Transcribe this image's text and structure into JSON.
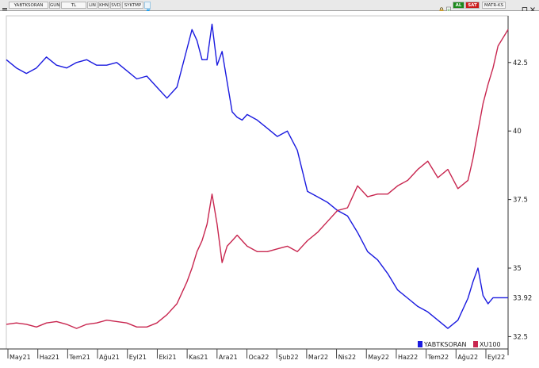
{
  "toolbar": {
    "buttons": [
      "YABTKSORAN",
      "GUN",
      "TL",
      "LIN",
      "KHN",
      "SVD",
      "SYKTMP"
    ],
    "right_buttons": [
      "AL",
      "SAT",
      "MATR-KS"
    ],
    "colors": {
      "al": "#1c8a1c",
      "sat": "#cc1a1a"
    },
    "icons": [
      "menu-icon",
      "twitter-icon",
      "lock-icon",
      "doc-icon",
      "minimize-icon",
      "maximize-icon",
      "close-icon"
    ]
  },
  "chart_data": {
    "type": "line",
    "x_ticks": [
      "May21",
      "Haz21",
      "Tem21",
      "Ağu21",
      "Eyl21",
      "Eki21",
      "Kas21",
      "Ara21",
      "Oca22",
      "Şub22",
      "Mar22",
      "Nis22",
      "May22",
      "Haz22",
      "Tem22",
      "Ağu22",
      "Eyl22"
    ],
    "y_ticks": [
      42.5,
      40,
      37.5,
      35,
      32.5
    ],
    "ylim": [
      32.05,
      44.2
    ],
    "last_value_label": "33.92",
    "legend": {
      "position": "bottom-right",
      "items": [
        {
          "label": "YABTKSORAN",
          "color": "#1a1adf"
        },
        {
          "label": "XU100",
          "color": "#c8264f"
        }
      ]
    },
    "series": [
      {
        "name": "YABTKSORAN",
        "color": "#1a1adf",
        "x": [
          0,
          0.02,
          0.04,
          0.06,
          0.08,
          0.1,
          0.12,
          0.14,
          0.16,
          0.18,
          0.2,
          0.22,
          0.24,
          0.26,
          0.28,
          0.3,
          0.32,
          0.34,
          0.36,
          0.37,
          0.38,
          0.39,
          0.4,
          0.41,
          0.42,
          0.43,
          0.44,
          0.45,
          0.46,
          0.47,
          0.48,
          0.5,
          0.52,
          0.54,
          0.56,
          0.58,
          0.6,
          0.62,
          0.64,
          0.66,
          0.68,
          0.7,
          0.72,
          0.74,
          0.76,
          0.78,
          0.8,
          0.82,
          0.84,
          0.86,
          0.88,
          0.9,
          0.92,
          0.93,
          0.94,
          0.95,
          0.96,
          0.97,
          0.98,
          1.0
        ],
        "y": [
          42.6,
          42.3,
          42.1,
          42.3,
          42.7,
          42.4,
          42.3,
          42.5,
          42.6,
          42.4,
          42.4,
          42.5,
          42.2,
          41.9,
          42.0,
          41.6,
          41.2,
          41.6,
          43.0,
          43.7,
          43.3,
          42.6,
          42.6,
          43.9,
          42.4,
          42.9,
          41.8,
          40.7,
          40.5,
          40.4,
          40.6,
          40.4,
          40.1,
          39.8,
          40.0,
          39.3,
          37.8,
          37.6,
          37.4,
          37.1,
          36.9,
          36.3,
          35.6,
          35.3,
          34.8,
          34.2,
          33.9,
          33.6,
          33.4,
          33.1,
          32.8,
          33.1,
          33.9,
          34.5,
          35.0,
          34.0,
          33.7,
          33.92,
          33.92,
          33.92
        ]
      },
      {
        "name": "XU100",
        "color": "#c8264f",
        "x": [
          0,
          0.02,
          0.04,
          0.06,
          0.08,
          0.1,
          0.12,
          0.14,
          0.16,
          0.18,
          0.2,
          0.22,
          0.24,
          0.26,
          0.28,
          0.3,
          0.32,
          0.34,
          0.36,
          0.37,
          0.38,
          0.39,
          0.4,
          0.41,
          0.42,
          0.43,
          0.44,
          0.45,
          0.46,
          0.47,
          0.48,
          0.5,
          0.52,
          0.54,
          0.56,
          0.58,
          0.6,
          0.62,
          0.64,
          0.66,
          0.68,
          0.7,
          0.72,
          0.74,
          0.76,
          0.78,
          0.8,
          0.82,
          0.84,
          0.86,
          0.88,
          0.9,
          0.92,
          0.93,
          0.94,
          0.95,
          0.96,
          0.97,
          0.98,
          1.0
        ],
        "y": [
          32.95,
          33.0,
          32.95,
          32.85,
          33.0,
          33.05,
          32.95,
          32.8,
          32.95,
          33.0,
          33.1,
          33.05,
          33.0,
          32.85,
          32.85,
          33.0,
          33.3,
          33.7,
          34.5,
          35.0,
          35.6,
          36.0,
          36.6,
          37.7,
          36.6,
          35.2,
          35.8,
          36.0,
          36.2,
          36.0,
          35.8,
          35.6,
          35.6,
          35.7,
          35.8,
          35.6,
          36.0,
          36.3,
          36.7,
          37.1,
          37.2,
          38.0,
          37.6,
          37.7,
          37.7,
          38.0,
          38.2,
          38.6,
          38.9,
          38.3,
          38.6,
          37.9,
          38.2,
          39.0,
          40.0,
          41.0,
          41.7,
          42.3,
          43.1,
          43.7
        ]
      }
    ]
  }
}
